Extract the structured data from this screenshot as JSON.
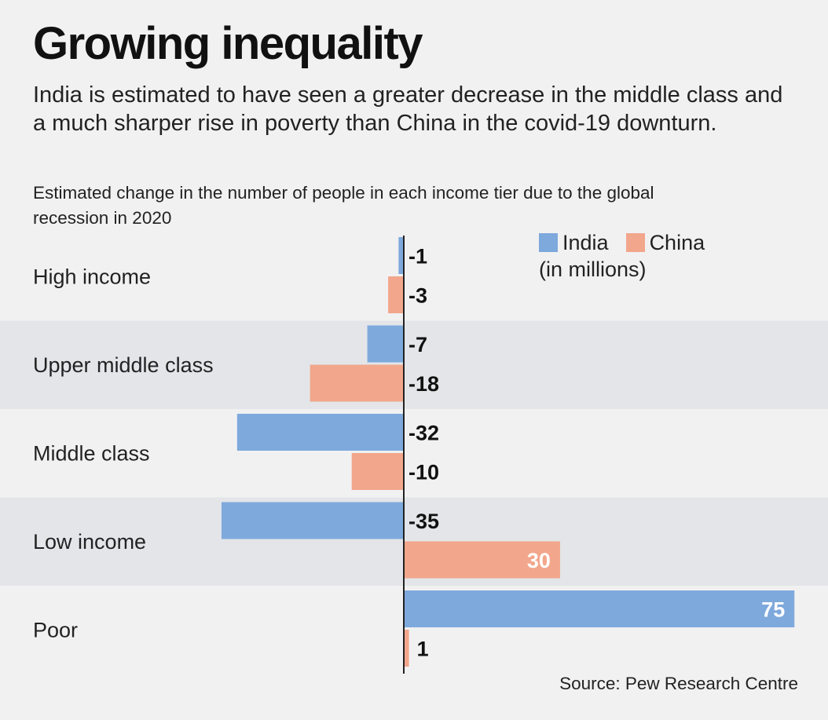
{
  "title": "Growing inequality",
  "subtitle": "India is estimated to have seen a greater decrease in the middle class and a much sharper rise in poverty than China in the covid-19 downturn.",
  "note": "Estimated change in the number of people in each income tier due to the global recession in 2020",
  "legend": {
    "india": "India",
    "china": "China",
    "unit": "(in millions)"
  },
  "source": "Source: Pew Research Centre",
  "colors": {
    "india": "#7ea9dc",
    "china": "#f2a68b",
    "band": "#e3e5e8",
    "background": "#f1f1f2"
  },
  "chart_data": {
    "type": "bar",
    "orientation": "horizontal",
    "categories": [
      "High income",
      "Upper middle class",
      "Middle class",
      "Low income",
      "Poor"
    ],
    "series": [
      {
        "name": "India",
        "values": [
          -1,
          -7,
          -32,
          -35,
          75
        ]
      },
      {
        "name": "China",
        "values": [
          -3,
          -18,
          -10,
          30,
          1
        ]
      }
    ],
    "value_labels": {
      "India": [
        "-1",
        "-7",
        "-32",
        "-35",
        "75"
      ],
      "China": [
        "-3",
        "-18",
        "-10",
        "30",
        "1"
      ]
    },
    "xlim": [
      -35,
      75
    ],
    "legend_position": "top-right"
  }
}
